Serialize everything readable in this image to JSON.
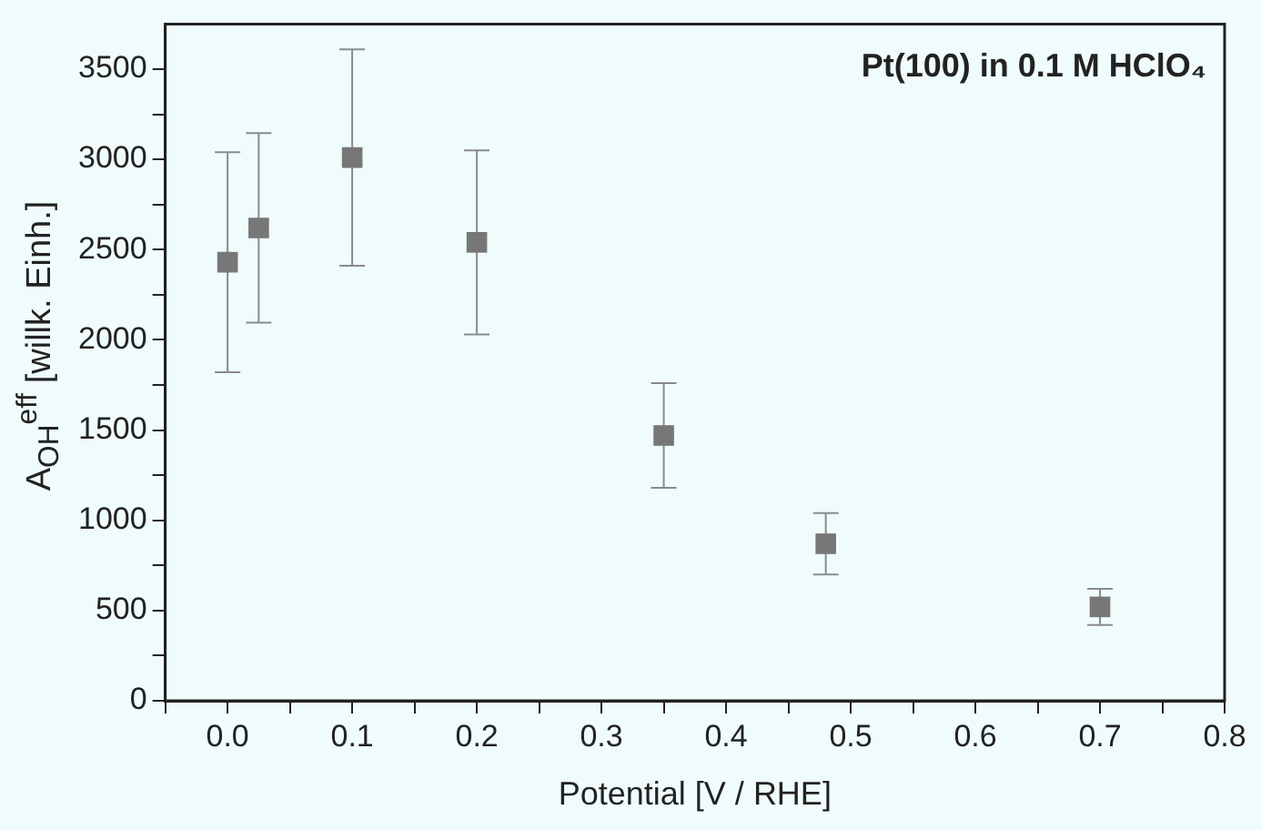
{
  "chart_data": {
    "type": "scatter",
    "xlabel": "Potential [V / RHE]",
    "ylabel": "A$_{OH}$$^{eff}$ [willk. Einh.]",
    "annotations": [
      "Pt(100) in 0.1 M HClO₄"
    ],
    "x": [
      0.0,
      0.025,
      0.1,
      0.2,
      0.35,
      0.48,
      0.7
    ],
    "series": [
      {
        "color": "#777777",
        "values": [
          2430,
          2620,
          3010,
          2540,
          1470,
          870,
          520
        ],
        "errors": [
          610,
          525,
          600,
          510,
          290,
          170,
          100
        ]
      }
    ],
    "marker": "square",
    "legend": false,
    "grid": false,
    "xlim": [
      -0.05,
      0.8
    ],
    "xticks": [
      {
        "value": -0.05,
        "label": null
      },
      {
        "value": 0,
        "label": "0.0"
      },
      {
        "value": 0.05,
        "label": null
      },
      0.1,
      {
        "value": 0.15,
        "label": null
      },
      0.2,
      {
        "value": 0.25,
        "label": null
      },
      0.3,
      {
        "value": 0.35,
        "label": null
      },
      0.4,
      {
        "value": 0.45,
        "label": null
      },
      0.5,
      {
        "value": 0.55,
        "label": null
      },
      0.6,
      {
        "value": 0.65,
        "label": null
      },
      0.7,
      {
        "value": 0.75,
        "label": null
      },
      0.8
    ],
    "ylim": [
      0,
      3750
    ],
    "yticks": [
      0,
      {
        "value": 250,
        "label": null
      },
      500,
      {
        "value": 750,
        "label": null
      },
      1000,
      {
        "value": 1250,
        "label": null
      },
      1500,
      {
        "value": 1750,
        "label": null
      },
      2000,
      {
        "value": 2250,
        "label": null
      },
      2500,
      {
        "value": 2750,
        "label": null
      },
      3000,
      {
        "value": 3250,
        "label": null
      },
      3500
    ]
  }
}
